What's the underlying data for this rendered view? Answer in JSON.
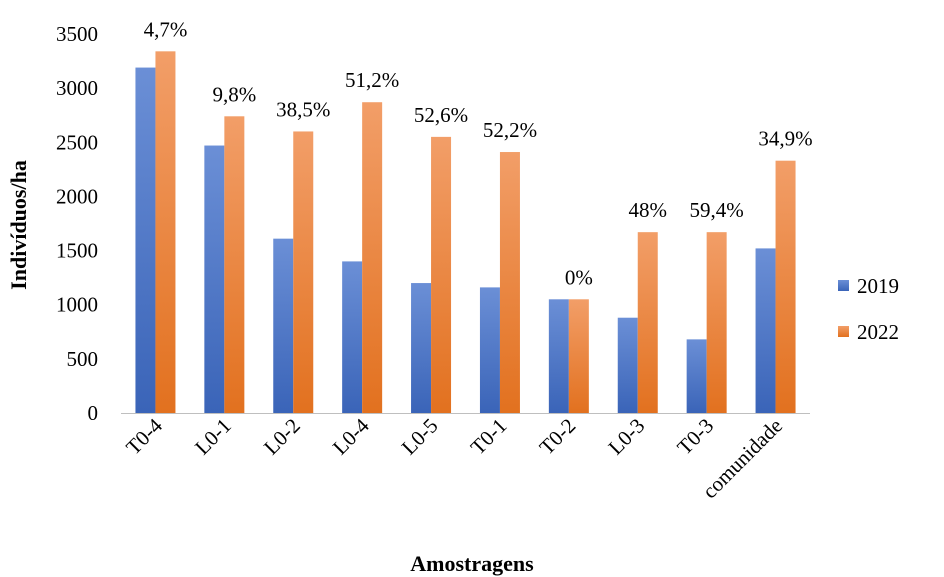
{
  "chart_data": {
    "type": "bar",
    "xlabel": "Amostragens",
    "ylabel": "Indivíduos/ha",
    "ylim": [
      0,
      3500
    ],
    "yticks": [
      0,
      500,
      1000,
      1500,
      2000,
      2500,
      3000,
      3500
    ],
    "categories": [
      "T0-4",
      "L0-1",
      "L0-2",
      "L0-4",
      "L0-5",
      "T0-1",
      "T0-2",
      "L0-3",
      "T0-3",
      "comunidade"
    ],
    "series": [
      {
        "name": "2019",
        "color": "#4472C4",
        "values": [
          3190,
          2470,
          1610,
          1400,
          1200,
          1160,
          1050,
          880,
          680,
          1520
        ]
      },
      {
        "name": "2022",
        "color": "#ED7D31",
        "values": [
          3340,
          2740,
          2600,
          2870,
          2550,
          2410,
          1050,
          1670,
          1670,
          2330
        ]
      }
    ],
    "annotations": [
      "4,7%",
      "9,8%",
      "38,5%",
      "51,2%",
      "52,6%",
      "52,2%",
      "0%",
      "48%",
      "59,4%",
      "34,9%"
    ],
    "grid": false,
    "legend": "right"
  }
}
